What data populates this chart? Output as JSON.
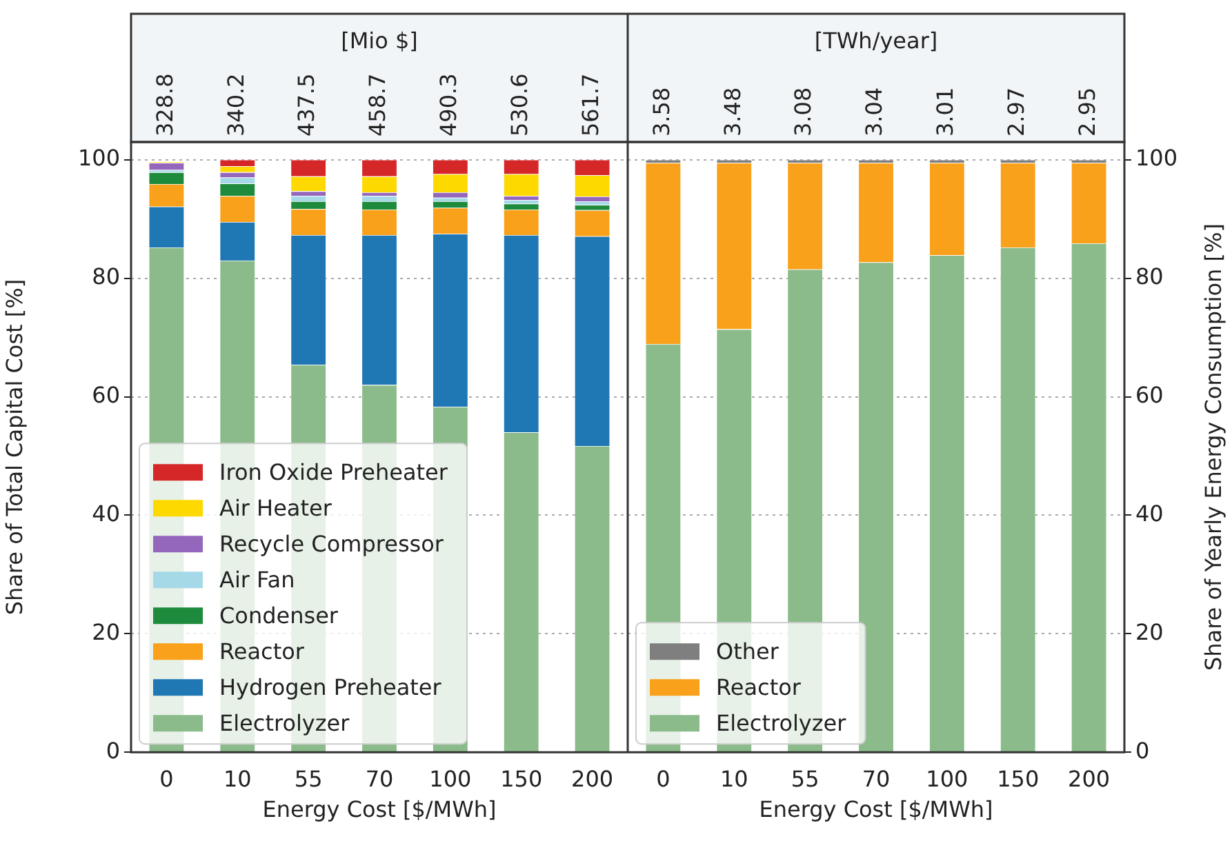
{
  "chart_data": [
    {
      "type": "bar",
      "title": "[Mio $]",
      "xlabel": "Energy Cost [$/MWh]",
      "ylabel": "Share of Total Capital Cost [%]",
      "stacked": true,
      "categories": [
        "0",
        "10",
        "55",
        "70",
        "100",
        "150",
        "200"
      ],
      "annotations": [
        "328.8",
        "340.2",
        "437.5",
        "458.7",
        "490.3",
        "530.6",
        "561.7"
      ],
      "series": [
        {
          "name": "Electrolyzer",
          "color": "#8bbb8a",
          "values": [
            85.2,
            83.0,
            65.4,
            62.0,
            58.3,
            54.0,
            51.7
          ]
        },
        {
          "name": "Hydrogen Preheater",
          "color": "#1f77b4",
          "values": [
            6.9,
            6.5,
            21.9,
            25.3,
            29.2,
            33.3,
            35.4
          ]
        },
        {
          "name": "Reactor",
          "color": "#f9a11b",
          "values": [
            3.8,
            4.4,
            4.4,
            4.3,
            4.4,
            4.3,
            4.4
          ]
        },
        {
          "name": "Condenser",
          "color": "#1e8a3c",
          "values": [
            2.0,
            2.1,
            1.3,
            1.4,
            1.1,
            1.0,
            0.9
          ]
        },
        {
          "name": "Air Fan",
          "color": "#a6d9e8",
          "values": [
            0.4,
            1.0,
            0.9,
            0.9,
            0.6,
            0.6,
            0.6
          ]
        },
        {
          "name": "Recycle Compressor",
          "color": "#9467bd",
          "values": [
            1.2,
            0.9,
            0.8,
            0.6,
            0.9,
            0.7,
            0.8
          ]
        },
        {
          "name": "Air Heater",
          "color": "#fdd900",
          "values": [
            0.2,
            1.0,
            2.5,
            2.7,
            3.1,
            3.7,
            3.6
          ]
        },
        {
          "name": "Iron Oxide Preheater",
          "color": "#d62728",
          "values": [
            0,
            1.1,
            2.8,
            2.8,
            2.4,
            2.4,
            2.6
          ]
        }
      ],
      "ylim": [
        0,
        103
      ],
      "yticks": [
        0,
        20,
        40,
        60,
        80,
        100
      ],
      "grid": "y",
      "legend": "bottom left"
    },
    {
      "type": "bar",
      "title": "[TWh/year]",
      "xlabel": "Energy Cost [$/MWh]",
      "ylabel": "Share of Yearly Energy Consumption [%]",
      "stacked": true,
      "categories": [
        "0",
        "10",
        "55",
        "70",
        "100",
        "150",
        "200"
      ],
      "annotations": [
        "3.58",
        "3.48",
        "3.08",
        "3.04",
        "3.01",
        "2.97",
        "2.95"
      ],
      "series": [
        {
          "name": "Electrolyzer",
          "color": "#8bbb8a",
          "values": [
            68.9,
            71.4,
            81.5,
            82.7,
            83.9,
            85.2,
            85.9
          ]
        },
        {
          "name": "Reactor",
          "color": "#f9a11b",
          "values": [
            30.6,
            28.1,
            18.0,
            16.8,
            15.6,
            14.3,
            13.6
          ]
        },
        {
          "name": "Other",
          "color": "#7f7f7f",
          "values": [
            0.5,
            0.5,
            0.5,
            0.5,
            0.5,
            0.5,
            0.5
          ]
        }
      ],
      "ylim": [
        0,
        103
      ],
      "yticks": [
        0,
        20,
        40,
        60,
        80,
        100
      ],
      "grid": "y",
      "legend": "bottom left"
    }
  ]
}
